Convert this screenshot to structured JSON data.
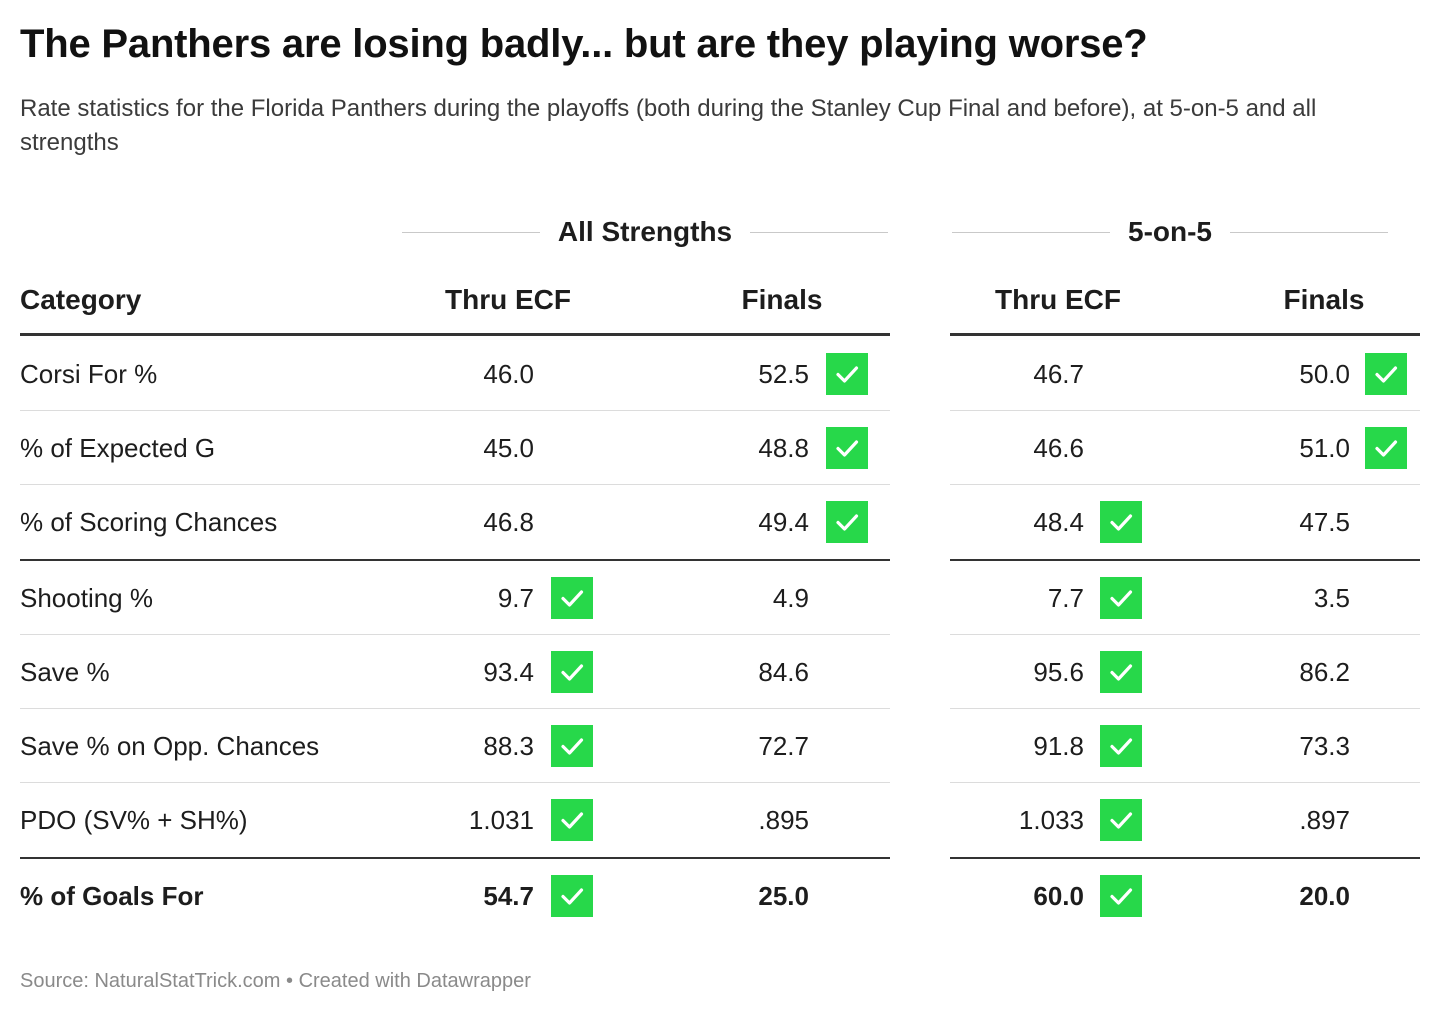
{
  "title": "The Panthers are losing badly... but are they playing worse?",
  "subtitle": "Rate statistics for the Florida Panthers during the playoffs (both during the Stanley Cup Final and before), at 5-on-5 and all strengths",
  "source": "Source: NaturalStatTrick.com • Created with Datawrapper",
  "colors": {
    "check": "#27d84a",
    "rule_dark": "#333333",
    "rule_light": "#dcdcdc"
  },
  "chart_data": {
    "type": "table",
    "groups": [
      "All Strengths",
      "5-on-5"
    ],
    "columns": [
      "Category",
      "Thru ECF",
      "Finals",
      "Thru ECF",
      "Finals"
    ],
    "rows": [
      {
        "category": "Corsi For %",
        "values": [
          "46.0",
          "52.5",
          "46.7",
          "50.0"
        ],
        "checks": [
          false,
          true,
          false,
          true
        ],
        "bold": false
      },
      {
        "category": "% of Expected G",
        "values": [
          "45.0",
          "48.8",
          "46.6",
          "51.0"
        ],
        "checks": [
          false,
          true,
          false,
          true
        ],
        "bold": false
      },
      {
        "category": "% of Scoring Chances",
        "values": [
          "46.8",
          "49.4",
          "48.4",
          "47.5"
        ],
        "checks": [
          false,
          true,
          true,
          false
        ],
        "bold": false
      },
      {
        "category": "Shooting %",
        "values": [
          "9.7",
          "4.9",
          "7.7",
          "3.5"
        ],
        "checks": [
          true,
          false,
          true,
          false
        ],
        "bold": false
      },
      {
        "category": "Save %",
        "values": [
          "93.4",
          "84.6",
          "95.6",
          "86.2"
        ],
        "checks": [
          true,
          false,
          true,
          false
        ],
        "bold": false
      },
      {
        "category": "Save % on Opp. Chances",
        "values": [
          "88.3",
          "72.7",
          "91.8",
          "73.3"
        ],
        "checks": [
          true,
          false,
          true,
          false
        ],
        "bold": false
      },
      {
        "category": "PDO (SV% + SH%)",
        "values": [
          "1.031",
          ".895",
          "1.033",
          ".897"
        ],
        "checks": [
          true,
          false,
          true,
          false
        ],
        "bold": false
      },
      {
        "category": "% of Goals For",
        "values": [
          "54.7",
          "25.0",
          "60.0",
          "20.0"
        ],
        "checks": [
          true,
          false,
          true,
          false
        ],
        "bold": true
      }
    ]
  }
}
